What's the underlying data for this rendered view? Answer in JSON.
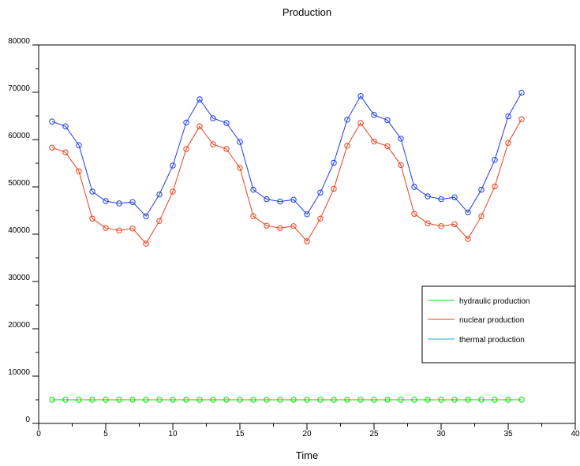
{
  "chart_data": {
    "type": "line",
    "title": "Production",
    "xlabel": "Time",
    "ylabel": "",
    "xlim": [
      0,
      40
    ],
    "ylim": [
      0,
      80000
    ],
    "xticks_major": [
      0,
      5,
      10,
      15,
      20,
      25,
      30,
      35,
      40
    ],
    "xticks_minor_step": 2.5,
    "yticks_major": [
      0,
      10000,
      20000,
      30000,
      40000,
      50000,
      60000,
      70000,
      80000
    ],
    "yticks_minor_step": 5000,
    "grid": false,
    "legend_position": "right",
    "legend_entries": [
      {
        "name": "hydraulic production",
        "color": "#00dd00"
      },
      {
        "name": "nuclear production",
        "color": "#e8401c"
      },
      {
        "name": "thermal production",
        "color": "#22aacc"
      }
    ],
    "x": [
      1,
      2,
      3,
      4,
      5,
      6,
      7,
      8,
      9,
      10,
      11,
      12,
      13,
      14,
      15,
      16,
      17,
      18,
      19,
      20,
      21,
      22,
      23,
      24,
      25,
      26,
      27,
      28,
      29,
      30,
      31,
      32,
      33,
      34,
      35,
      36
    ],
    "series": [
      {
        "key": "hydraulic",
        "color": "#00dd00",
        "values": [
          5000,
          5000,
          5000,
          5000,
          5000,
          5000,
          5000,
          5000,
          5000,
          5000,
          5000,
          5000,
          5000,
          5000,
          5000,
          5000,
          5000,
          5000,
          5000,
          5000,
          5000,
          5000,
          5000,
          5000,
          5000,
          5000,
          5000,
          5000,
          5000,
          5000,
          5000,
          5000,
          5000,
          5000,
          5000,
          5000
        ]
      },
      {
        "key": "nuclear",
        "color": "#e8401c",
        "values": [
          58300,
          57300,
          53300,
          43300,
          41300,
          40800,
          41200,
          38000,
          42800,
          49000,
          58000,
          62800,
          59000,
          58000,
          54000,
          43800,
          41800,
          41300,
          41700,
          38500,
          43300,
          49600,
          58700,
          63500,
          59600,
          58600,
          54600,
          44300,
          42300,
          41700,
          42100,
          39000,
          43800,
          50100,
          59300,
          64300
        ]
      },
      {
        "key": "total",
        "color": "#1c3be8",
        "values": [
          63800,
          62800,
          58800,
          49000,
          47000,
          46500,
          46800,
          43800,
          48400,
          54500,
          63600,
          68500,
          64500,
          63500,
          59500,
          49400,
          47400,
          46900,
          47300,
          44200,
          48800,
          55100,
          64200,
          69200,
          65200,
          64100,
          60200,
          50000,
          48000,
          47400,
          47800,
          44600,
          49400,
          55700,
          64900,
          69900
        ]
      }
    ]
  }
}
